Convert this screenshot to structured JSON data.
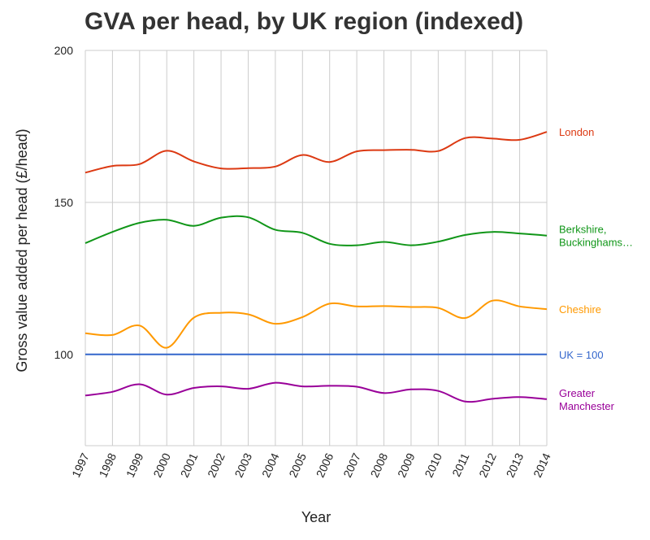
{
  "chart_data": {
    "type": "line",
    "title": "GVA per head, by UK region (indexed)",
    "xlabel": "Year",
    "ylabel": "Gross value added per head (£/head)",
    "x": [
      "1997",
      "1998",
      "1999",
      "2000",
      "2001",
      "2002",
      "2003",
      "2004",
      "2005",
      "2006",
      "2007",
      "2008",
      "2009",
      "2010",
      "2011",
      "2012",
      "2013",
      "2014"
    ],
    "ylim": [
      70,
      200
    ],
    "yticks": [
      "100",
      "150",
      "200"
    ],
    "grid": true,
    "legend": "right, labels at line ends",
    "series": [
      {
        "name": "London",
        "color": "#dc3912",
        "values": [
          159.8,
          162.0,
          162.6,
          167.0,
          163.5,
          161.2,
          161.3,
          161.8,
          165.6,
          163.3,
          166.8,
          167.2,
          167.3,
          166.9,
          171.2,
          171.0,
          170.6,
          173.2
        ]
      },
      {
        "name": "Berkshire, Buckinghams…",
        "color": "#109618",
        "values": [
          136.6,
          140.3,
          143.3,
          144.3,
          142.3,
          145.0,
          145.1,
          141.0,
          140.0,
          136.4,
          135.9,
          137.0,
          135.9,
          137.1,
          139.3,
          140.3,
          139.8,
          139.1
        ]
      },
      {
        "name": "Cheshire",
        "color": "#ff9900",
        "values": [
          107.0,
          106.4,
          109.5,
          102.2,
          112.1,
          113.7,
          113.2,
          110.1,
          112.3,
          116.7,
          115.8,
          115.9,
          115.6,
          115.3,
          112.0,
          117.7,
          115.8,
          114.9
        ]
      },
      {
        "name": "UK = 100",
        "color": "#3366cc",
        "values": [
          100,
          100,
          100,
          100,
          100,
          100,
          100,
          100,
          100,
          100,
          100,
          100,
          100,
          100,
          100,
          100,
          100,
          100
        ]
      },
      {
        "name": "Greater Manchester",
        "label_lines": [
          "Greater",
          "Manchester"
        ],
        "color": "#990099",
        "values": [
          86.5,
          87.7,
          90.2,
          86.8,
          89.0,
          89.5,
          88.7,
          90.7,
          89.5,
          89.7,
          89.4,
          87.3,
          88.5,
          88.0,
          84.5,
          85.4,
          86.0,
          85.3
        ]
      }
    ]
  }
}
